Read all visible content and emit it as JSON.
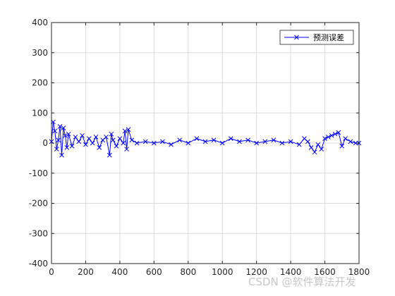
{
  "chart_data": {
    "type": "line",
    "title": "",
    "xlabel": "",
    "ylabel": "",
    "xlim": [
      0,
      1800
    ],
    "ylim": [
      -400,
      400
    ],
    "xticks": [
      0,
      200,
      400,
      600,
      800,
      1000,
      1200,
      1400,
      1600,
      1800
    ],
    "yticks": [
      -400,
      -300,
      -200,
      -100,
      0,
      100,
      200,
      300,
      400
    ],
    "xtick_labels": [
      "0",
      "200",
      "400",
      "600",
      "800",
      "1000",
      "1200",
      "1400",
      "1600",
      "1800"
    ],
    "ytick_labels": [
      "-400",
      "-300",
      "-200",
      "-100",
      "0",
      "100",
      "200",
      "300",
      "400"
    ],
    "grid": true,
    "legend_position": "top-right",
    "series": [
      {
        "name": "预测误差",
        "color": "#0000ff",
        "marker": "x",
        "x": [
          0,
          10,
          20,
          30,
          40,
          50,
          60,
          70,
          80,
          90,
          100,
          120,
          140,
          160,
          180,
          200,
          220,
          240,
          260,
          280,
          300,
          320,
          340,
          350,
          360,
          380,
          400,
          420,
          430,
          440,
          450,
          470,
          500,
          550,
          600,
          650,
          700,
          750,
          800,
          850,
          900,
          950,
          1000,
          1050,
          1100,
          1150,
          1200,
          1250,
          1300,
          1350,
          1400,
          1450,
          1480,
          1500,
          1520,
          1540,
          1560,
          1580,
          1600,
          1620,
          1640,
          1660,
          1680,
          1700,
          1720,
          1750,
          1780,
          1800
        ],
        "y": [
          5,
          70,
          40,
          -20,
          10,
          55,
          -40,
          50,
          25,
          -15,
          30,
          -10,
          20,
          5,
          25,
          -5,
          15,
          0,
          20,
          -15,
          10,
          20,
          -40,
          30,
          10,
          -10,
          15,
          0,
          40,
          -20,
          45,
          10,
          0,
          5,
          0,
          5,
          -5,
          10,
          0,
          15,
          5,
          10,
          0,
          15,
          5,
          10,
          0,
          5,
          10,
          0,
          5,
          -5,
          15,
          5,
          -15,
          -30,
          -5,
          -20,
          15,
          20,
          25,
          30,
          35,
          -10,
          15,
          5,
          0,
          0
        ]
      }
    ]
  },
  "watermark": "CSDN @软件算法开发"
}
